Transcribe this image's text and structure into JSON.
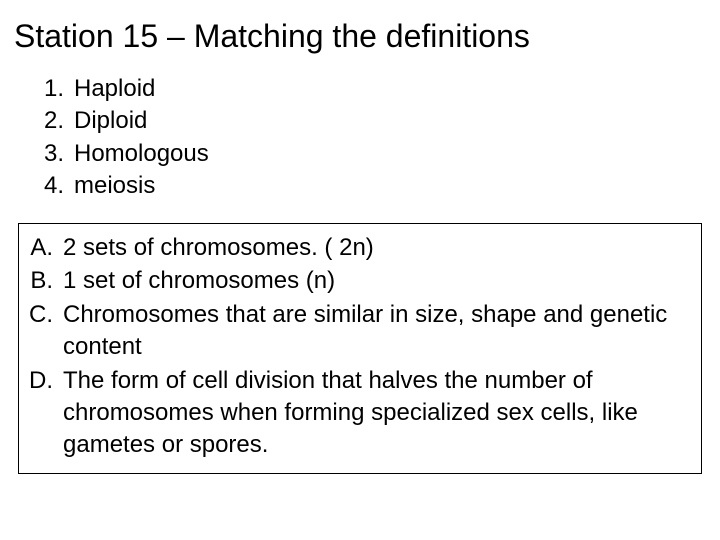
{
  "title": "Station 15 – Matching the definitions",
  "title_fontsize": 32,
  "body_fontsize": 24,
  "text_color": "#000000",
  "background_color": "#ffffff",
  "box_border_color": "#000000",
  "terms": [
    {
      "num": "1.",
      "text": "Haploid"
    },
    {
      "num": "2.",
      "text": "Diploid"
    },
    {
      "num": "3.",
      "text": "Homologous"
    },
    {
      "num": "4.",
      "text": "meiosis"
    }
  ],
  "definitions": [
    {
      "letter": "A.",
      "text": "2 sets of chromosomes. ( 2n)"
    },
    {
      "letter": "B.",
      "text": "1 set of chromosomes (n)"
    },
    {
      "letter": "C.",
      "text": "Chromosomes that are similar in size, shape and genetic content"
    },
    {
      "letter": "D.",
      "text": "The form of cell division that halves the number of chromosomes when forming specialized sex cells, like gametes or spores."
    }
  ]
}
